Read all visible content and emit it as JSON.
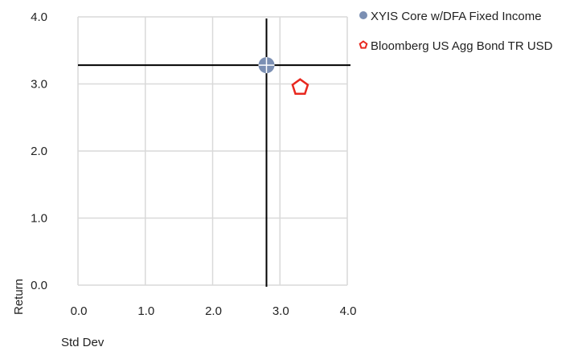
{
  "chart_data": {
    "type": "scatter",
    "title": "",
    "xlabel": "Std Dev",
    "ylabel": "Return",
    "xlim": [
      0,
      4
    ],
    "ylim": [
      0,
      4
    ],
    "x_ticks": [
      "0.0",
      "1.0",
      "2.0",
      "3.0",
      "4.0"
    ],
    "y_ticks": [
      "0.0",
      "1.0",
      "2.0",
      "3.0",
      "4.0"
    ],
    "grid": true,
    "legend_position": "top-right",
    "series": [
      {
        "name": "XYIS Core w/DFA Fixed Income",
        "x": 2.8,
        "y": 3.28,
        "marker": "circle-crosshair",
        "color": "#7b8fb3"
      },
      {
        "name": "Bloomberg US Agg Bond TR USD",
        "x": 3.3,
        "y": 2.95,
        "marker": "pentagon",
        "color": "#e8281f"
      }
    ],
    "crosshair": {
      "x": 2.8,
      "y": 3.28,
      "color": "#000000"
    }
  }
}
